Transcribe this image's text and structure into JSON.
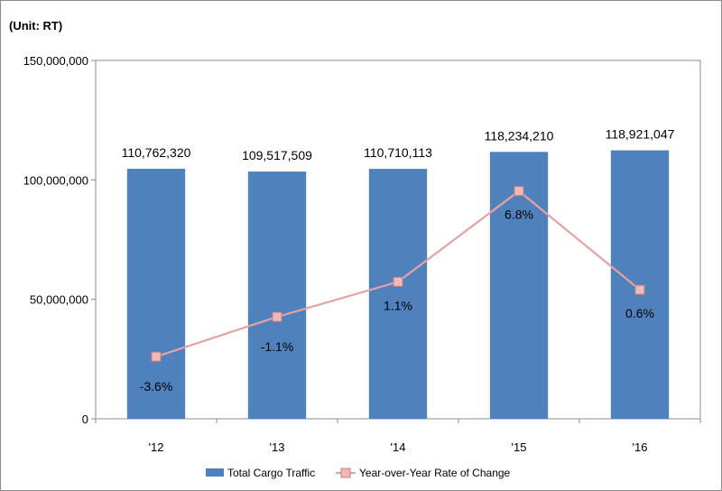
{
  "unit_label": "(Unit: RT)",
  "chart_data": {
    "type": "bar",
    "categories": [
      "'12",
      "'13",
      "'14",
      "'15",
      "'16"
    ],
    "series": [
      {
        "name": "Total Cargo Traffic",
        "kind": "bar",
        "values": [
          110762320,
          109517509,
          110710113,
          118234210,
          118921047
        ],
        "labels": [
          "110,762,320",
          "109,517,509",
          "110,710,113",
          "118,234,210",
          "118,921,047"
        ],
        "color": "#4f81bd"
      },
      {
        "name": "Year-over-Year Rate of Change",
        "kind": "line",
        "values": [
          -3.6,
          -1.1,
          1.1,
          6.8,
          0.6
        ],
        "labels": [
          "-3.6%",
          "-1.1%",
          "1.1%",
          "6.8%",
          "0.6%"
        ],
        "color": "#e6a2a2",
        "marker_fill": "#f2b8b8"
      }
    ],
    "y_ticks": [
      "0",
      "50,000,000",
      "100,000,000",
      "150,000,000"
    ],
    "ylim": [
      0,
      150000000
    ],
    "grid": false,
    "legend_position": "bottom"
  }
}
